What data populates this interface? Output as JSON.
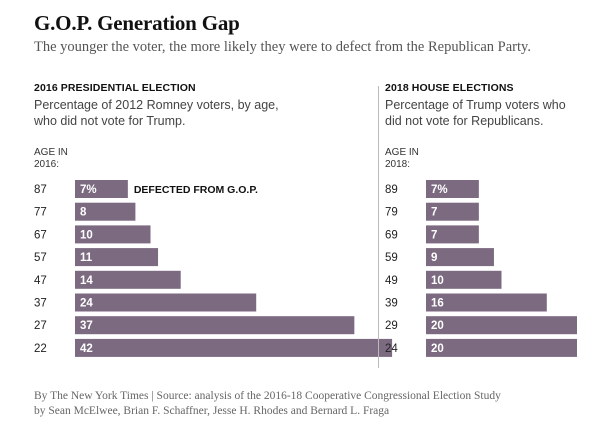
{
  "header": {
    "title": "G.O.P. Generation Gap",
    "subtitle": "The younger the voter, the more likely they were to defect from the Republican Party."
  },
  "footer": {
    "credit": "By The New York Times | Source: analysis of the 2016-18 Cooperative Congressional Election Study\nby Sean McElwee, Brian F. Schaffner, Jesse H. Rhodes and Bernard L. Fraga"
  },
  "colors": {
    "bar": "#7b6a80",
    "bar_label": "#ffffff"
  },
  "chart_data": [
    {
      "type": "bar",
      "orientation": "horizontal",
      "title": "2016 PRESIDENTIAL ELECTION",
      "description": "Percentage of 2012 Romney voters, by age,\nwho did not vote for Trump.",
      "age_label": "AGE IN\n2016:",
      "categories": [
        "87",
        "77",
        "67",
        "57",
        "47",
        "37",
        "27",
        "22"
      ],
      "values": [
        7,
        8,
        10,
        11,
        14,
        24,
        37,
        42
      ],
      "value_labels": [
        "7%",
        "8",
        "10",
        "11",
        "14",
        "24",
        "37",
        "42"
      ],
      "annotation": "DEFECTED FROM G.O.P.",
      "xlim": [
        0,
        42
      ]
    },
    {
      "type": "bar",
      "orientation": "horizontal",
      "title": "2018 HOUSE ELECTIONS",
      "description": "Percentage of Trump voters who\ndid not vote for Republicans.",
      "age_label": "AGE IN\n2018:",
      "categories": [
        "89",
        "79",
        "69",
        "59",
        "49",
        "39",
        "29",
        "24"
      ],
      "values": [
        7,
        7,
        7,
        9,
        10,
        16,
        20,
        20
      ],
      "value_labels": [
        "7%",
        "7",
        "7",
        "9",
        "10",
        "16",
        "20",
        "20"
      ],
      "xlim": [
        0,
        42
      ]
    }
  ]
}
